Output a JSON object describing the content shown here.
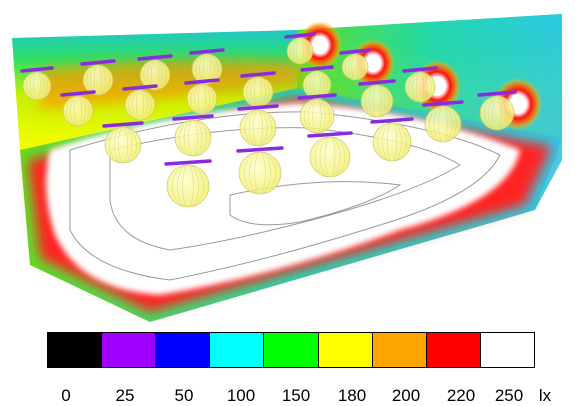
{
  "colorbar": {
    "unit": "lx",
    "levels": [
      {
        "value": "0",
        "color": "#000000"
      },
      {
        "value": "25",
        "color": "#a000ff"
      },
      {
        "value": "50",
        "color": "#0000ff"
      },
      {
        "value": "100",
        "color": "#00ffff"
      },
      {
        "value": "150",
        "color": "#00ff00"
      },
      {
        "value": "180",
        "color": "#ffff00"
      },
      {
        "value": "200",
        "color": "#ffa500"
      },
      {
        "value": "220",
        "color": "#ff0000"
      },
      {
        "value": "250",
        "color": "#ffffff"
      }
    ]
  },
  "scene": {
    "luminaire_color": "#8a2be2",
    "globe_color": "#ffff80"
  }
}
